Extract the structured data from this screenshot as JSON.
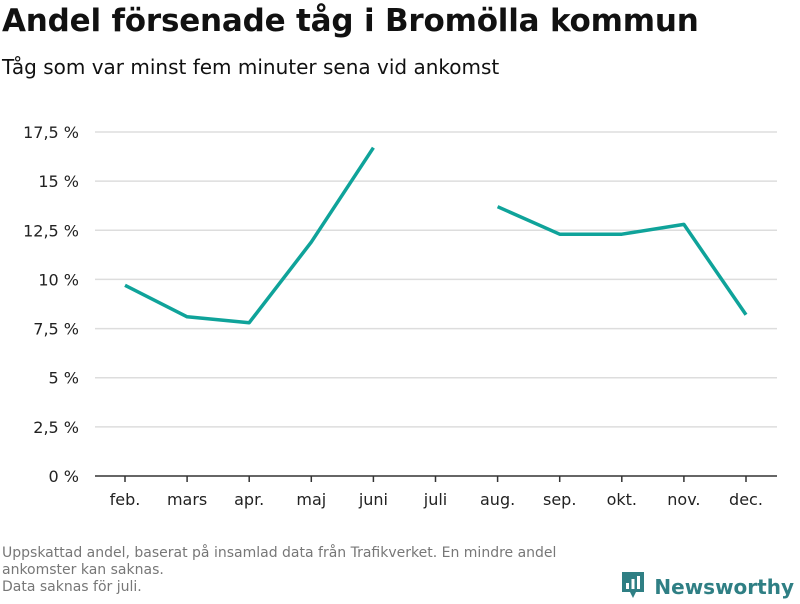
{
  "header": {
    "title": "Andel försenade tåg i Bromölla kommun",
    "subtitle": "Tåg som var minst fem minuter sena vid ankomst"
  },
  "footnote": {
    "line1": "Uppskattad andel, baserat på insamlad data från Trafikverket. En mindre andel ankomster kan saknas.",
    "line2": "Data saknas för juli."
  },
  "brand": {
    "name": "Newsworthy",
    "icon": "newsworthy-logo-icon",
    "color": "#2f7f84"
  },
  "chart_data": {
    "type": "line",
    "categories": [
      "feb.",
      "mars",
      "apr.",
      "maj",
      "juni",
      "juli",
      "aug.",
      "sep.",
      "okt.",
      "nov.",
      "dec."
    ],
    "series": [
      {
        "values": [
          9.7,
          8.1,
          7.8,
          11.9,
          16.7,
          null,
          13.7,
          12.3,
          12.3,
          12.8,
          8.2
        ],
        "color": "#0fa39a"
      }
    ],
    "yticks": [
      0,
      2.5,
      5,
      7.5,
      10,
      12.5,
      15,
      17.5
    ],
    "ytick_labels": [
      "0 %",
      "2,5 %",
      "5 %",
      "7,5 %",
      "10 %",
      "12,5 %",
      "15 %",
      "17,5 %"
    ],
    "ylim": [
      0,
      17.5
    ],
    "grid": true,
    "gridColor": "#dddddd",
    "axisColor": "#333333"
  }
}
